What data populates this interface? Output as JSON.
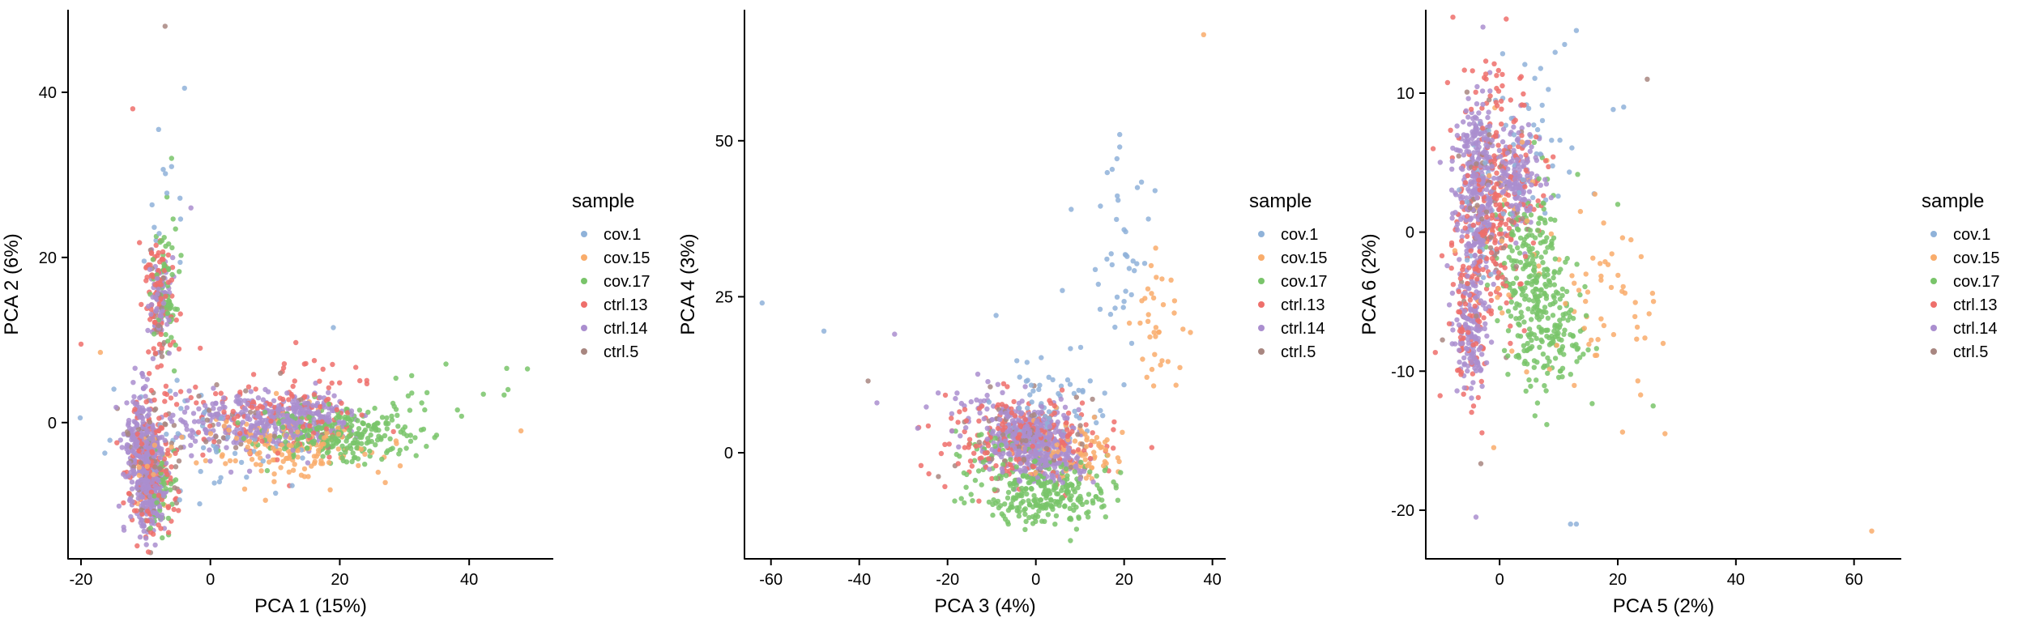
{
  "chart_data": [
    {
      "type": "scatter",
      "xlabel": "PCA 1 (15%)",
      "ylabel": "PCA 2 (6%)",
      "xlim": [
        -22,
        53
      ],
      "ylim": [
        -16.5,
        50
      ],
      "xticks": [
        -20,
        0,
        20,
        40
      ],
      "yticks": [
        0,
        20,
        40
      ],
      "legend_title": "sample",
      "legend_placement": "right",
      "grid": false,
      "series_order": [
        "cov.1",
        "cov.15",
        "cov.17",
        "ctrl.13",
        "ctrl.14",
        "ctrl.5"
      ],
      "clusters": [
        {
          "series": "ctrl.14",
          "cx": -11,
          "cy": -3,
          "sx": 1.2,
          "sy": 3.5,
          "n": 220
        },
        {
          "series": "ctrl.14",
          "cx": -9,
          "cy": -7,
          "sx": 1.0,
          "sy": 3,
          "n": 260
        },
        {
          "series": "ctrl.14",
          "cx": -8,
          "cy": 15,
          "sx": 1,
          "sy": 3,
          "n": 60
        },
        {
          "series": "ctrl.14",
          "cx": 3,
          "cy": 0,
          "sx": 6,
          "sy": 2,
          "n": 160
        },
        {
          "series": "ctrl.14",
          "cx": 14,
          "cy": 0.5,
          "sx": 4,
          "sy": 1.6,
          "n": 230
        },
        {
          "series": "ctrl.13",
          "cx": -9,
          "cy": -6,
          "sx": 2,
          "sy": 4,
          "n": 140
        },
        {
          "series": "ctrl.13",
          "cx": -8,
          "cy": 15,
          "sx": 1.3,
          "sy": 4,
          "n": 90
        },
        {
          "series": "ctrl.13",
          "cx": 10,
          "cy": 2,
          "sx": 8,
          "sy": 3,
          "n": 150
        },
        {
          "series": "ctrl.5",
          "cx": -9,
          "cy": -5,
          "sx": 2,
          "sy": 4,
          "n": 60
        },
        {
          "series": "ctrl.5",
          "cx": -8,
          "cy": 14,
          "sx": 1,
          "sy": 4,
          "n": 25
        },
        {
          "series": "ctrl.5",
          "cx": 6,
          "cy": 0,
          "sx": 8,
          "sy": 3,
          "n": 30
        },
        {
          "series": "cov.17",
          "cx": 20,
          "cy": -1.5,
          "sx": 6,
          "sy": 1.6,
          "n": 270
        },
        {
          "series": "cov.17",
          "cx": -7,
          "cy": 17,
          "sx": 1,
          "sy": 4,
          "n": 70
        },
        {
          "series": "cov.17",
          "cx": -8,
          "cy": -8,
          "sx": 1.2,
          "sy": 3,
          "n": 50
        },
        {
          "series": "cov.17",
          "cx": 36,
          "cy": 3,
          "sx": 5,
          "sy": 2,
          "n": 15
        },
        {
          "series": "cov.15",
          "cx": 12,
          "cy": -3,
          "sx": 6,
          "sy": 2,
          "n": 150
        },
        {
          "series": "cov.15",
          "cx": -9,
          "cy": -6,
          "sx": 1.5,
          "sy": 3,
          "n": 25
        },
        {
          "series": "cov.1",
          "cx": 0,
          "cy": -2,
          "sx": 10,
          "sy": 3,
          "n": 60
        },
        {
          "series": "cov.1",
          "cx": -7,
          "cy": 22,
          "sx": 1.5,
          "sy": 5,
          "n": 15
        }
      ],
      "points": [
        {
          "series": "ctrl.5",
          "x": -7,
          "y": 48
        },
        {
          "series": "cov.1",
          "x": -4,
          "y": 40.5
        },
        {
          "series": "ctrl.13",
          "x": -12,
          "y": 38
        },
        {
          "series": "cov.1",
          "x": -8,
          "y": 35.5
        },
        {
          "series": "cov.17",
          "x": -6,
          "y": 32
        },
        {
          "series": "cov.1",
          "x": -6,
          "y": 31
        },
        {
          "series": "ctrl.14",
          "x": -3,
          "y": 26
        },
        {
          "series": "cov.1",
          "x": 19,
          "y": 11.5
        },
        {
          "series": "cov.15",
          "x": 48,
          "y": -1
        },
        {
          "series": "cov.17",
          "x": 49,
          "y": 6.5
        },
        {
          "series": "cov.17",
          "x": 46,
          "y": 4
        },
        {
          "series": "ctrl.13",
          "x": -20,
          "y": 9.5
        },
        {
          "series": "cov.15",
          "x": -17,
          "y": 8.5
        }
      ]
    },
    {
      "type": "scatter",
      "xlabel": "PCA 3 (4%)",
      "ylabel": "PCA 4 (3%)",
      "xlim": [
        -66,
        43
      ],
      "ylim": [
        -17,
        71
      ],
      "xticks": [
        -60,
        -40,
        -20,
        0,
        20,
        40
      ],
      "yticks": [
        0,
        25,
        50
      ],
      "legend_title": "sample",
      "legend_placement": "right",
      "grid": false,
      "series_order": [
        "cov.1",
        "cov.15",
        "cov.17",
        "ctrl.13",
        "ctrl.14",
        "ctrl.5"
      ],
      "clusters": [
        {
          "series": "cov.17",
          "cx": 2,
          "cy": -6.5,
          "sx": 7,
          "sy": 2.5,
          "n": 260
        },
        {
          "series": "cov.17",
          "cx": -8,
          "cy": 0,
          "sx": 6,
          "sy": 3,
          "n": 50
        },
        {
          "series": "ctrl.13",
          "cx": -2,
          "cy": 2,
          "sx": 9,
          "sy": 3.5,
          "n": 220
        },
        {
          "series": "ctrl.14",
          "cx": -2,
          "cy": 2.5,
          "sx": 4.5,
          "sy": 2.5,
          "n": 340
        },
        {
          "series": "ctrl.14",
          "cx": 3,
          "cy": -1,
          "sx": 4,
          "sy": 2.2,
          "n": 160
        },
        {
          "series": "ctrl.14",
          "cx": -15,
          "cy": 7,
          "sx": 5,
          "sy": 3,
          "n": 30
        },
        {
          "series": "ctrl.5",
          "cx": -3,
          "cy": 2,
          "sx": 7,
          "sy": 4,
          "n": 60
        },
        {
          "series": "cov.15",
          "cx": 8,
          "cy": 0,
          "sx": 6,
          "sy": 2.5,
          "n": 90
        },
        {
          "series": "cov.15",
          "cx": 28,
          "cy": 20,
          "sx": 3,
          "sy": 6,
          "n": 35
        },
        {
          "series": "cov.1",
          "cx": 4,
          "cy": 8,
          "sx": 6,
          "sy": 4,
          "n": 60
        },
        {
          "series": "cov.1",
          "cx": 20,
          "cy": 30,
          "sx": 3,
          "sy": 7,
          "n": 35
        }
      ],
      "points": [
        {
          "series": "cov.1",
          "x": -62,
          "y": 24
        },
        {
          "series": "cov.1",
          "x": -48,
          "y": 19.5
        },
        {
          "series": "ctrl.14",
          "x": -32,
          "y": 19
        },
        {
          "series": "ctrl.5",
          "x": -38,
          "y": 11.5
        },
        {
          "series": "ctrl.14",
          "x": -36,
          "y": 8
        },
        {
          "series": "cov.15",
          "x": 38,
          "y": 67
        },
        {
          "series": "cov.1",
          "x": 19,
          "y": 51
        },
        {
          "series": "cov.1",
          "x": 19,
          "y": 49
        },
        {
          "series": "cov.1",
          "x": 23,
          "y": 42.5
        },
        {
          "series": "cov.1",
          "x": 27,
          "y": 42
        },
        {
          "series": "cov.1",
          "x": 8,
          "y": 39
        },
        {
          "series": "cov.1",
          "x": -9,
          "y": 22
        },
        {
          "series": "cov.1",
          "x": 6,
          "y": 26
        }
      ]
    },
    {
      "type": "scatter",
      "xlabel": "PCA 5 (2%)",
      "ylabel": "PCA 6 (2%)",
      "xlim": [
        -12.5,
        68
      ],
      "ylim": [
        -23.5,
        16
      ],
      "xticks": [
        0,
        20,
        40,
        60
      ],
      "yticks": [
        -20,
        -10,
        0,
        10
      ],
      "legend_title": "sample",
      "legend_placement": "right",
      "grid": false,
      "series_order": [
        "cov.1",
        "cov.15",
        "cov.17",
        "ctrl.13",
        "ctrl.14",
        "ctrl.5"
      ],
      "clusters": [
        {
          "series": "cov.17",
          "cx": 6,
          "cy": -4,
          "sx": 3,
          "sy": 3.5,
          "n": 280
        },
        {
          "series": "cov.17",
          "cx": 11,
          "cy": -8,
          "sx": 3,
          "sy": 2,
          "n": 60
        },
        {
          "series": "ctrl.13",
          "cx": -1,
          "cy": 2,
          "sx": 3.5,
          "sy": 5,
          "n": 280
        },
        {
          "series": "ctrl.13",
          "cx": -5,
          "cy": -6,
          "sx": 1.5,
          "sy": 3,
          "n": 80
        },
        {
          "series": "ctrl.14",
          "cx": -4,
          "cy": 3,
          "sx": 1.8,
          "sy": 3.5,
          "n": 320
        },
        {
          "series": "ctrl.14",
          "cx": -5,
          "cy": -7,
          "sx": 1.3,
          "sy": 2,
          "n": 140
        },
        {
          "series": "ctrl.14",
          "cx": 3,
          "cy": 4,
          "sx": 2,
          "sy": 2,
          "n": 160
        },
        {
          "series": "ctrl.5",
          "cx": -2,
          "cy": 2,
          "sx": 3,
          "sy": 5,
          "n": 70
        },
        {
          "series": "cov.15",
          "cx": 16,
          "cy": -6,
          "sx": 6,
          "sy": 3,
          "n": 55
        },
        {
          "series": "cov.15",
          "cx": 2,
          "cy": 0,
          "sx": 4,
          "sy": 4,
          "n": 30
        },
        {
          "series": "cov.1",
          "cx": 5,
          "cy": 6,
          "sx": 4,
          "sy": 3,
          "n": 45
        },
        {
          "series": "cov.1",
          "cx": -3,
          "cy": 1,
          "sx": 2,
          "sy": 4,
          "n": 20
        }
      ],
      "points": [
        {
          "series": "cov.1",
          "x": 13,
          "y": 14.5
        },
        {
          "series": "cov.1",
          "x": 11,
          "y": 13.5
        },
        {
          "series": "ctrl.5",
          "x": 25,
          "y": 11
        },
        {
          "series": "cov.1",
          "x": 21,
          "y": 9
        },
        {
          "series": "cov.15",
          "x": 63,
          "y": -21.5
        },
        {
          "series": "cov.1",
          "x": 13,
          "y": -21
        },
        {
          "series": "cov.1",
          "x": 12,
          "y": -21
        },
        {
          "series": "ctrl.14",
          "x": -4,
          "y": -20.5
        },
        {
          "series": "cov.15",
          "x": 28,
          "y": -14.5
        },
        {
          "series": "cov.17",
          "x": 26,
          "y": -12.5
        },
        {
          "series": "cov.15",
          "x": -1,
          "y": -15.5
        },
        {
          "series": "cov.17",
          "x": 20,
          "y": 2
        }
      ]
    }
  ],
  "series_colors": {
    "cov.1": "#8fb2d9",
    "cov.15": "#f9ac6b",
    "cov.17": "#79c46a",
    "ctrl.13": "#ee6f6b",
    "ctrl.14": "#aa8ecf",
    "ctrl.5": "#a88680"
  }
}
